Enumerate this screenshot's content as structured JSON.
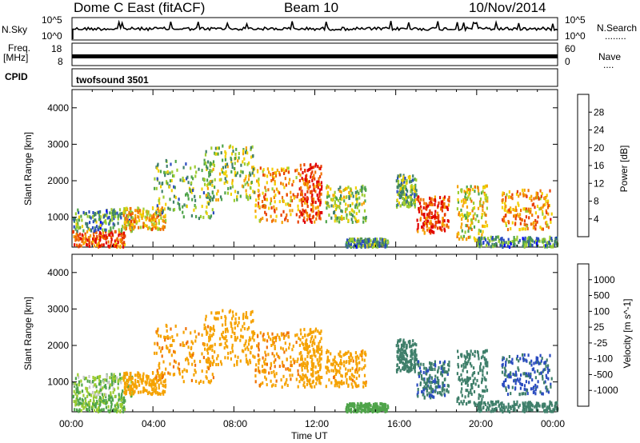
{
  "header": {
    "station": "Dome C East (fitACF)",
    "beam": "Beam 10",
    "date": "10/Nov/2014"
  },
  "nsky": {
    "label": "N.Sky",
    "ticks": [
      "10^5",
      "10^0"
    ],
    "right_ticks": [
      "10^5",
      "10^0"
    ],
    "right_label": "N.Search",
    "right_marker": "........"
  },
  "freq": {
    "label_line1": "Freq.",
    "label_line2": "[MHz]",
    "ticks": [
      "18",
      "8"
    ],
    "right_ticks": [
      "60",
      "0"
    ],
    "right_label": "Nave",
    "right_marker": "...."
  },
  "cpid": {
    "label": "CPID",
    "value": "twofsound 3501"
  },
  "x_axis": {
    "label": "Time UT",
    "ticks": [
      "00:00",
      "04:00",
      "08:00",
      "12:00",
      "16:00",
      "20:00",
      "00:00"
    ]
  },
  "chart_data": [
    {
      "type": "heatmap",
      "panel": "power",
      "ylabel": "Slant Range [km]",
      "ylim": [
        180,
        4500
      ],
      "yticks": [
        1000,
        2000,
        3000,
        4000
      ],
      "xlim_hours": [
        0,
        24
      ],
      "colorbar": {
        "label": "Power [dB]",
        "range": [
          0,
          32
        ],
        "ticks": [
          "28",
          "24",
          "20",
          "16",
          "12",
          "8",
          "4"
        ],
        "colors": [
          "#0000ff",
          "#2a4bc0",
          "#3f7f6a",
          "#4fa44a",
          "#9ccc30",
          "#f2d000",
          "#f5a200",
          "#f07000",
          "#e83d00",
          "#e00000"
        ]
      },
      "regions": [
        {
          "t": [
            0.0,
            2.6
          ],
          "r": [
            220,
            650
          ],
          "power": 26
        },
        {
          "t": [
            0.0,
            3.0
          ],
          "r": [
            650,
            1250
          ],
          "power": 10
        },
        {
          "t": [
            2.5,
            4.6
          ],
          "r": [
            700,
            1300
          ],
          "power": 20
        },
        {
          "t": [
            4.0,
            7.0
          ],
          "r": [
            1000,
            2600
          ],
          "power": 12
        },
        {
          "t": [
            6.5,
            9.0
          ],
          "r": [
            1500,
            3000
          ],
          "power": 14
        },
        {
          "t": [
            9.0,
            11.3
          ],
          "r": [
            900,
            2400
          ],
          "power": 22
        },
        {
          "t": [
            11.2,
            12.3
          ],
          "r": [
            900,
            2500
          ],
          "power": 27
        },
        {
          "t": [
            12.5,
            14.5
          ],
          "r": [
            900,
            1900
          ],
          "power": 14
        },
        {
          "t": [
            13.5,
            15.6
          ],
          "r": [
            220,
            450
          ],
          "power": 10
        },
        {
          "t": [
            16.0,
            17.0
          ],
          "r": [
            1300,
            2200
          ],
          "power": 12
        },
        {
          "t": [
            17.0,
            18.6
          ],
          "r": [
            600,
            1600
          ],
          "power": 27
        },
        {
          "t": [
            19.0,
            20.5
          ],
          "r": [
            400,
            1900
          ],
          "power": 18
        },
        {
          "t": [
            21.2,
            23.7
          ],
          "r": [
            700,
            1800
          ],
          "power": 22
        },
        {
          "t": [
            20.0,
            24.0
          ],
          "r": [
            220,
            500
          ],
          "power": 9
        }
      ]
    },
    {
      "type": "heatmap",
      "panel": "velocity",
      "ylabel": "Slant Range [km]",
      "ylim": [
        180,
        4500
      ],
      "yticks": [
        1000,
        2000,
        3000,
        4000
      ],
      "xlim_hours": [
        0,
        24
      ],
      "colorbar": {
        "label": "Velocity [m s^-1]",
        "ticks": [
          "1000",
          "500",
          "100",
          "25",
          "-25",
          "-100",
          "-500",
          "-1000"
        ],
        "colors": [
          "#2a4bc0",
          "#3f7f6a",
          "#4fa44a",
          "#9ccc30",
          "#c8c8c8",
          "#f2d000",
          "#f5a200",
          "#f07000",
          "#e00000"
        ]
      },
      "regions": [
        {
          "t": [
            0.0,
            2.6
          ],
          "r": [
            220,
            650
          ],
          "velocity": 30
        },
        {
          "t": [
            0.0,
            3.0
          ],
          "r": [
            650,
            1250
          ],
          "velocity": 20
        },
        {
          "t": [
            2.5,
            4.6
          ],
          "r": [
            700,
            1300
          ],
          "velocity": -300
        },
        {
          "t": [
            4.0,
            7.0
          ],
          "r": [
            1000,
            2600
          ],
          "velocity": -400
        },
        {
          "t": [
            6.5,
            9.0
          ],
          "r": [
            1500,
            3000
          ],
          "velocity": -200
        },
        {
          "t": [
            9.0,
            11.3
          ],
          "r": [
            900,
            2400
          ],
          "velocity": -400
        },
        {
          "t": [
            11.2,
            12.3
          ],
          "r": [
            900,
            2500
          ],
          "velocity": -300
        },
        {
          "t": [
            12.5,
            14.5
          ],
          "r": [
            900,
            1900
          ],
          "velocity": -350
        },
        {
          "t": [
            13.5,
            15.6
          ],
          "r": [
            220,
            450
          ],
          "velocity": 60
        },
        {
          "t": [
            16.0,
            17.0
          ],
          "r": [
            1300,
            2200
          ],
          "velocity": 300
        },
        {
          "t": [
            17.0,
            18.6
          ],
          "r": [
            600,
            1600
          ],
          "velocity": 400
        },
        {
          "t": [
            19.0,
            20.5
          ],
          "r": [
            400,
            1900
          ],
          "velocity": 300
        },
        {
          "t": [
            21.2,
            23.7
          ],
          "r": [
            700,
            1800
          ],
          "velocity": 600
        },
        {
          "t": [
            20.0,
            24.0
          ],
          "r": [
            220,
            500
          ],
          "velocity": 200
        }
      ]
    }
  ]
}
